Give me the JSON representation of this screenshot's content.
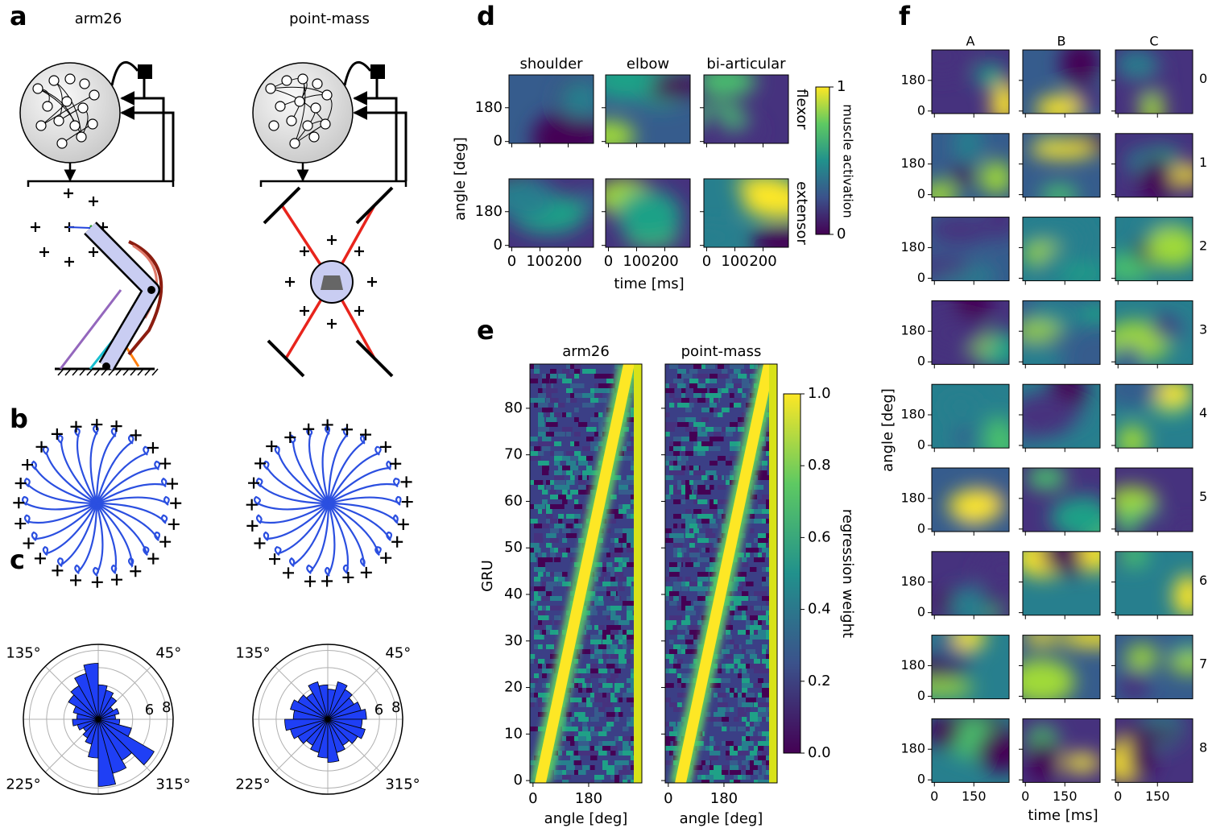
{
  "panel_labels": [
    "a",
    "b",
    "c",
    "d",
    "e",
    "f"
  ],
  "a": {
    "titles": [
      "arm26",
      "point-mass"
    ]
  },
  "chart_data": [
    {
      "type": "polar_bar",
      "values": [
        2,
        2.5,
        2,
        3,
        3.5,
        4,
        6.5,
        5.5,
        4.5,
        4,
        3,
        2.5,
        3,
        2.5,
        2,
        2.5,
        3,
        4.5,
        7.8,
        6.5,
        5.5,
        7.5,
        4,
        2.5
      ],
      "color": "#1f3ff5",
      "rlim": [
        0,
        8.7
      ],
      "rgrid": [
        2,
        4,
        6,
        8
      ],
      "rticks": [
        6,
        8
      ],
      "angle_labels": [
        {
          "value": 135,
          "label": "135°"
        },
        {
          "value": 45,
          "label": "45°"
        },
        {
          "value": 225,
          "label": "225°"
        },
        {
          "value": 315,
          "label": "315°"
        }
      ]
    },
    {
      "type": "polar_bar",
      "values": [
        4.5,
        4,
        3.5,
        4,
        4.5,
        3.5,
        4,
        4.5,
        3.5,
        4,
        4.5,
        4,
        5,
        4.5,
        4,
        3.5,
        4,
        4.5,
        5,
        4,
        3.5,
        4,
        4.5,
        4
      ],
      "color": "#1f3ff5",
      "rlim": [
        0,
        8.7
      ],
      "rgrid": [
        2,
        4,
        6,
        8
      ],
      "rticks": [
        6,
        8
      ],
      "angle_labels": [
        {
          "value": 135,
          "label": "135°"
        },
        {
          "value": 45,
          "label": "45°"
        },
        {
          "value": 225,
          "label": "225°"
        },
        {
          "value": 315,
          "label": "315°"
        }
      ]
    }
  ],
  "d": {
    "col_titles": [
      "shoulder",
      "elbow",
      "bi-articular"
    ],
    "row_labels": [
      "flexor",
      "extensor"
    ],
    "ylabel": "angle [deg]",
    "xlabel": "time [ms]",
    "xlim": [
      -10,
      290
    ],
    "ylim": [
      -10,
      355
    ],
    "xticks": [
      0,
      100,
      200
    ],
    "yticks": [
      0,
      180
    ],
    "colorbar": {
      "label": "muscle activation",
      "lim": [
        0,
        1
      ],
      "ticks": [
        0,
        1
      ]
    }
  },
  "e": {
    "titles": [
      "arm26",
      "point-mass"
    ],
    "xlabel": "angle [deg]",
    "ylabel": "GRU",
    "xlim": [
      -10,
      352
    ],
    "ylim": [
      -0.5,
      89.5
    ],
    "xticks": [
      0,
      180
    ],
    "yticks": [
      0,
      10,
      20,
      30,
      40,
      50,
      60,
      70,
      80
    ],
    "colorbar": {
      "label": "regression weight",
      "lim": [
        0,
        1
      ],
      "ticks": [
        {
          "value": 0,
          "label": "0.0"
        },
        0.2,
        0.4,
        0.6,
        0.8,
        {
          "value": 1,
          "label": "1.0"
        }
      ]
    }
  },
  "f": {
    "col_titles": [
      "A",
      "B",
      "C"
    ],
    "row_labels": [
      "0",
      "1",
      "2",
      "3",
      "4",
      "5",
      "6",
      "7",
      "8"
    ],
    "xlabel": "time [ms]",
    "ylabel": "angle [deg]",
    "xlim": [
      -10,
      284
    ],
    "ylim": [
      -15,
      359
    ],
    "xticks": [
      0,
      150
    ],
    "yticks": [
      0,
      180
    ]
  }
}
